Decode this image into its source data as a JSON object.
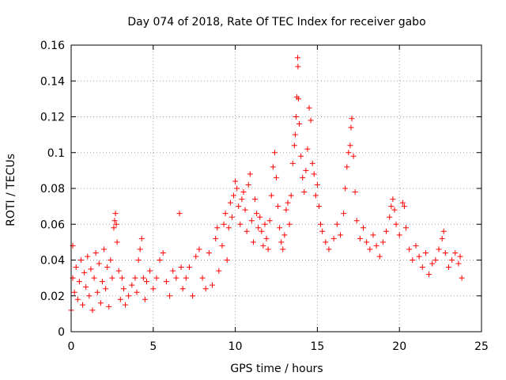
{
  "chart_data": {
    "type": "scatter",
    "title": "Day 074 of 2018, Rate Of TEC Index for receiver gabo",
    "xlabel": "GPS time / hours",
    "ylabel": "ROTI / TECUs",
    "xlim": [
      0,
      25
    ],
    "ylim": [
      0,
      0.16
    ],
    "x_ticks": [
      "0",
      "5",
      "10",
      "15",
      "20",
      "25"
    ],
    "y_ticks": [
      "0",
      "0.02",
      "0.04",
      "0.06",
      "0.08",
      "0.1",
      "0.12",
      "0.14",
      "0.16"
    ],
    "x_tick_values": [
      0,
      5,
      10,
      15,
      20,
      25
    ],
    "y_tick_values": [
      0,
      0.02,
      0.04,
      0.06,
      0.08,
      0.1,
      0.12,
      0.14,
      0.16
    ],
    "grid": true,
    "marker": "+",
    "color": "#ff0000",
    "series": [
      {
        "name": "ROTI",
        "points": [
          [
            0.0,
            0.012
          ],
          [
            0.1,
            0.03
          ],
          [
            0.1,
            0.048
          ],
          [
            0.2,
            0.022
          ],
          [
            0.3,
            0.036
          ],
          [
            0.4,
            0.018
          ],
          [
            0.5,
            0.028
          ],
          [
            0.6,
            0.04
          ],
          [
            0.7,
            0.015
          ],
          [
            0.8,
            0.033
          ],
          [
            0.9,
            0.025
          ],
          [
            1.0,
            0.042
          ],
          [
            1.1,
            0.02
          ],
          [
            1.2,
            0.035
          ],
          [
            1.3,
            0.012
          ],
          [
            1.4,
            0.03
          ],
          [
            1.5,
            0.044
          ],
          [
            1.6,
            0.022
          ],
          [
            1.7,
            0.038
          ],
          [
            1.8,
            0.016
          ],
          [
            1.9,
            0.028
          ],
          [
            2.0,
            0.046
          ],
          [
            2.1,
            0.024
          ],
          [
            2.2,
            0.036
          ],
          [
            2.3,
            0.014
          ],
          [
            2.4,
            0.04
          ],
          [
            2.5,
            0.03
          ],
          [
            2.6,
            0.058
          ],
          [
            2.65,
            0.062
          ],
          [
            2.7,
            0.066
          ],
          [
            2.75,
            0.06
          ],
          [
            2.8,
            0.05
          ],
          [
            2.9,
            0.034
          ],
          [
            3.0,
            0.018
          ],
          [
            3.1,
            0.03
          ],
          [
            3.2,
            0.024
          ],
          [
            3.3,
            0.015
          ],
          [
            3.5,
            0.02
          ],
          [
            3.7,
            0.026
          ],
          [
            3.9,
            0.03
          ],
          [
            4.0,
            0.022
          ],
          [
            4.1,
            0.04
          ],
          [
            4.2,
            0.046
          ],
          [
            4.3,
            0.052
          ],
          [
            4.4,
            0.03
          ],
          [
            4.5,
            0.018
          ],
          [
            4.6,
            0.028
          ],
          [
            4.8,
            0.034
          ],
          [
            5.0,
            0.024
          ],
          [
            5.2,
            0.03
          ],
          [
            5.4,
            0.04
          ],
          [
            5.6,
            0.044
          ],
          [
            5.8,
            0.028
          ],
          [
            6.0,
            0.02
          ],
          [
            6.2,
            0.034
          ],
          [
            6.4,
            0.03
          ],
          [
            6.6,
            0.066
          ],
          [
            6.7,
            0.036
          ],
          [
            6.8,
            0.024
          ],
          [
            7.0,
            0.03
          ],
          [
            7.2,
            0.036
          ],
          [
            7.4,
            0.02
          ],
          [
            7.6,
            0.042
          ],
          [
            7.8,
            0.046
          ],
          [
            8.0,
            0.03
          ],
          [
            8.2,
            0.024
          ],
          [
            8.4,
            0.044
          ],
          [
            8.6,
            0.026
          ],
          [
            8.8,
            0.052
          ],
          [
            8.9,
            0.058
          ],
          [
            9.0,
            0.034
          ],
          [
            9.2,
            0.048
          ],
          [
            9.3,
            0.06
          ],
          [
            9.4,
            0.066
          ],
          [
            9.5,
            0.04
          ],
          [
            9.6,
            0.058
          ],
          [
            9.7,
            0.072
          ],
          [
            9.8,
            0.064
          ],
          [
            9.9,
            0.076
          ],
          [
            10.0,
            0.084
          ],
          [
            10.1,
            0.08
          ],
          [
            10.2,
            0.07
          ],
          [
            10.3,
            0.06
          ],
          [
            10.4,
            0.074
          ],
          [
            10.5,
            0.078
          ],
          [
            10.6,
            0.068
          ],
          [
            10.7,
            0.056
          ],
          [
            10.8,
            0.082
          ],
          [
            10.9,
            0.088
          ],
          [
            11.0,
            0.062
          ],
          [
            11.1,
            0.05
          ],
          [
            11.2,
            0.074
          ],
          [
            11.3,
            0.066
          ],
          [
            11.4,
            0.058
          ],
          [
            11.5,
            0.064
          ],
          [
            11.6,
            0.056
          ],
          [
            11.7,
            0.048
          ],
          [
            11.8,
            0.06
          ],
          [
            11.9,
            0.052
          ],
          [
            12.0,
            0.046
          ],
          [
            12.1,
            0.062
          ],
          [
            12.2,
            0.076
          ],
          [
            12.3,
            0.092
          ],
          [
            12.4,
            0.1
          ],
          [
            12.5,
            0.086
          ],
          [
            12.6,
            0.07
          ],
          [
            12.7,
            0.058
          ],
          [
            12.8,
            0.05
          ],
          [
            12.9,
            0.046
          ],
          [
            13.0,
            0.054
          ],
          [
            13.1,
            0.068
          ],
          [
            13.2,
            0.072
          ],
          [
            13.3,
            0.06
          ],
          [
            13.4,
            0.076
          ],
          [
            13.5,
            0.094
          ],
          [
            13.6,
            0.104
          ],
          [
            13.65,
            0.11
          ],
          [
            13.7,
            0.12
          ],
          [
            13.75,
            0.131
          ],
          [
            13.8,
            0.153
          ],
          [
            13.82,
            0.148
          ],
          [
            13.85,
            0.13
          ],
          [
            13.9,
            0.116
          ],
          [
            14.0,
            0.098
          ],
          [
            14.1,
            0.086
          ],
          [
            14.2,
            0.078
          ],
          [
            14.3,
            0.09
          ],
          [
            14.4,
            0.102
          ],
          [
            14.5,
            0.125
          ],
          [
            14.6,
            0.118
          ],
          [
            14.7,
            0.094
          ],
          [
            14.8,
            0.088
          ],
          [
            14.9,
            0.076
          ],
          [
            15.0,
            0.082
          ],
          [
            15.1,
            0.07
          ],
          [
            15.2,
            0.06
          ],
          [
            15.3,
            0.056
          ],
          [
            15.5,
            0.05
          ],
          [
            15.7,
            0.046
          ],
          [
            16.0,
            0.052
          ],
          [
            16.2,
            0.06
          ],
          [
            16.4,
            0.054
          ],
          [
            16.6,
            0.066
          ],
          [
            16.7,
            0.08
          ],
          [
            16.8,
            0.092
          ],
          [
            16.9,
            0.1
          ],
          [
            17.0,
            0.104
          ],
          [
            17.05,
            0.114
          ],
          [
            17.1,
            0.119
          ],
          [
            17.2,
            0.098
          ],
          [
            17.3,
            0.078
          ],
          [
            17.4,
            0.062
          ],
          [
            17.6,
            0.052
          ],
          [
            17.8,
            0.058
          ],
          [
            18.0,
            0.05
          ],
          [
            18.2,
            0.046
          ],
          [
            18.4,
            0.054
          ],
          [
            18.6,
            0.048
          ],
          [
            18.8,
            0.042
          ],
          [
            19.0,
            0.05
          ],
          [
            19.2,
            0.056
          ],
          [
            19.4,
            0.064
          ],
          [
            19.5,
            0.07
          ],
          [
            19.6,
            0.074
          ],
          [
            19.7,
            0.068
          ],
          [
            19.8,
            0.06
          ],
          [
            20.0,
            0.054
          ],
          [
            20.2,
            0.072
          ],
          [
            20.3,
            0.07
          ],
          [
            20.4,
            0.058
          ],
          [
            20.6,
            0.046
          ],
          [
            20.8,
            0.04
          ],
          [
            21.0,
            0.048
          ],
          [
            21.2,
            0.042
          ],
          [
            21.4,
            0.036
          ],
          [
            21.6,
            0.044
          ],
          [
            21.8,
            0.032
          ],
          [
            22.0,
            0.038
          ],
          [
            22.2,
            0.04
          ],
          [
            22.4,
            0.046
          ],
          [
            22.6,
            0.052
          ],
          [
            22.7,
            0.056
          ],
          [
            22.8,
            0.044
          ],
          [
            23.0,
            0.036
          ],
          [
            23.2,
            0.04
          ],
          [
            23.4,
            0.044
          ],
          [
            23.6,
            0.038
          ],
          [
            23.7,
            0.042
          ],
          [
            23.8,
            0.03
          ]
        ]
      }
    ]
  }
}
